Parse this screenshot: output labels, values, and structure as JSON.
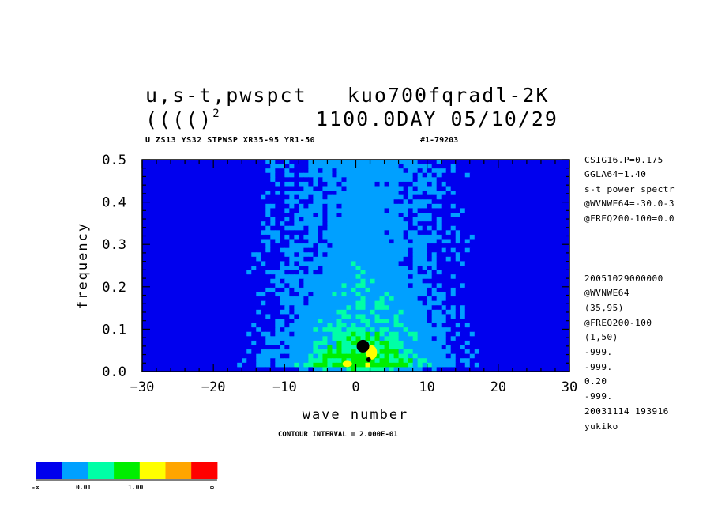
{
  "title": {
    "line1": "u,s-t,pwspct   kuo700fqradl-2K",
    "line2_prefix": "(((()",
    "line2_sup": "2",
    "line2_right": "1100.0DAY 05/10/29",
    "subtitle": "U ZS13 YS32 STPWSP XR35-95 YR1-50",
    "subtitle_id": "#1-79203"
  },
  "side_info": [
    "CSIG16.P=0.175",
    "GGLA64=1.40",
    "s-t power spectr",
    "@WVNWE64=-30.0-3",
    "@FREQ200-100=0.0",
    "20051029000000",
    "@WVNWE64",
    "(35,95)",
    "@FREQ200-100",
    "(1,50)",
    "-999.",
    "-999.",
    "0.20",
    "-999.",
    "20031114 193916",
    "yukiko"
  ],
  "contour_interval": "CONTOUR INTERVAL = 2.000E-01",
  "colorbar": {
    "colors": [
      "#0000ee",
      "#00a0ff",
      "#00ffa6",
      "#00ee00",
      "#ffff00",
      "#ffa500",
      "#ff0000"
    ],
    "labels": [
      "-∞",
      "0.01",
      "1.00",
      "∞"
    ]
  },
  "chart_data": {
    "type": "heatmap",
    "xlabel": "wave number",
    "ylabel": "frequency",
    "xlim": [
      -30,
      30
    ],
    "ylim": [
      0,
      0.5
    ],
    "xticks": [
      -30,
      -20,
      -10,
      0,
      10,
      20,
      30
    ],
    "xtick_labels": [
      "−30",
      "−20",
      "−10",
      "0",
      "10",
      "20",
      "30"
    ],
    "yticks": [
      0.0,
      0.1,
      0.2,
      0.3,
      0.4,
      0.5
    ],
    "ytick_labels": [
      "0.0",
      "0.1",
      "0.2",
      "0.3",
      "0.4",
      "0.5"
    ],
    "levels_description": "log10 power spectrum levels: <0.01, 0.01-0.1, 0.1-1, 1-10, 10-100, >100",
    "peak": {
      "wavenumber": 1,
      "frequency": 0.06,
      "note": "maximum near k=1, f≈0.06"
    }
  }
}
